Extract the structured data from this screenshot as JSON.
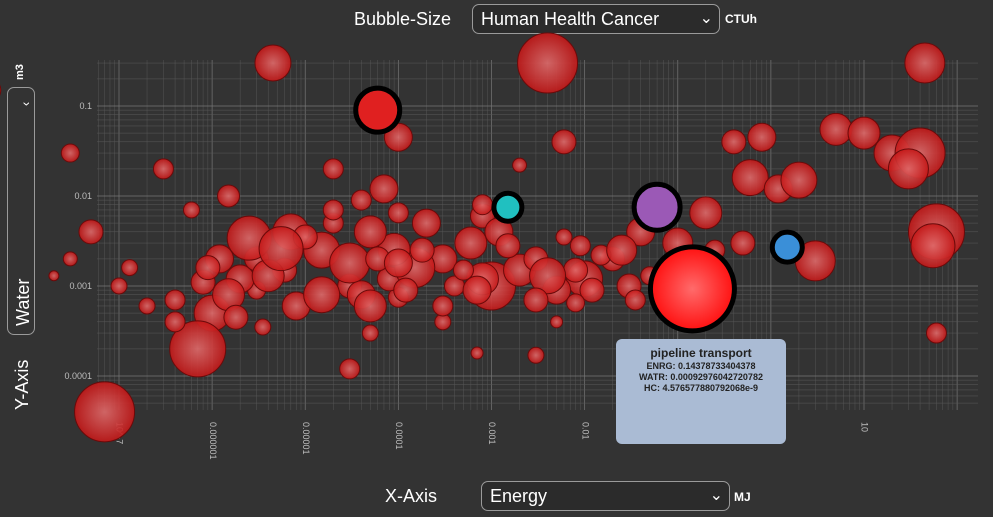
{
  "bubble_size": {
    "label": "Bubble-Size",
    "selected": "Human Health Cancer",
    "unit": "CTUh"
  },
  "x_axis": {
    "label": "X-Axis",
    "selected": "Energy",
    "unit": "MJ"
  },
  "y_axis": {
    "label": "Y-Axis",
    "selected": "Water",
    "unit": "m3"
  },
  "tooltip": {
    "title": "pipeline transport",
    "lines": [
      "ENRG: 0.14378733404378",
      "WATR: 0.000929760427207​82",
      "HC: 4.57657788079​2068e-9"
    ]
  },
  "colors": {
    "background": "#333333",
    "bubble": "#e02020",
    "highlight_cyan": "#20c0c0",
    "highlight_purple": "#9b59b6",
    "highlight_blue": "#3a8fd8",
    "tooltip": "#aabbd4"
  },
  "chart_data": {
    "type": "scatter",
    "title": "",
    "xlabel": "Energy",
    "ylabel": "Water",
    "xscale": "log",
    "yscale": "log",
    "xlim": [
      1e-08,
      100
    ],
    "ylim": [
      3e-05,
      0.4
    ],
    "x_ticks": [
      "10^-7",
      "0.000001",
      "0.00001",
      "0.0001",
      "0.001",
      "0.01",
      "0.1",
      "1",
      "10"
    ],
    "y_ticks": [
      "0.0001",
      "0.001",
      "0.01",
      "0.1"
    ],
    "highlighted": [
      {
        "x": 6e-05,
        "y": 0.09,
        "size": 22,
        "color": "#e02020"
      },
      {
        "x": 0.0015,
        "y": 0.0075,
        "size": 14,
        "color": "#20c0c0"
      },
      {
        "x": 0.06,
        "y": 0.0075,
        "size": 23,
        "color": "#9b59b6"
      },
      {
        "x": 0.14378733404378,
        "y": 0.00092976,
        "size": 42,
        "color": "#ff2020"
      },
      {
        "x": 1.5,
        "y": 0.0027,
        "size": 15,
        "color": "#3a8fd8"
      }
    ],
    "points": [
      [
        7e-08,
        4e-05,
        30
      ],
      [
        4.5e-06,
        0.3,
        18
      ],
      [
        0.004,
        0.3,
        30
      ],
      [
        4e-09,
        0.15,
        12
      ],
      [
        45,
        0.3,
        20
      ],
      [
        0.0001,
        0.045,
        14
      ],
      [
        2e-08,
        0.0013,
        5
      ],
      [
        3e-08,
        0.002,
        7
      ],
      [
        3e-06,
        0.0009,
        9
      ],
      [
        1.2e-06,
        0.002,
        14
      ],
      [
        6e-06,
        0.0015,
        12
      ],
      [
        1.5e-05,
        0.0025,
        18
      ],
      [
        3e-05,
        0.001,
        12
      ],
      [
        0.0001,
        0.00075,
        10
      ],
      [
        0.0003,
        0.002,
        14
      ],
      [
        0.001,
        0.001,
        24
      ],
      [
        0.002,
        0.0015,
        16
      ],
      [
        0.01,
        0.0012,
        18
      ],
      [
        0.02,
        0.002,
        12
      ],
      [
        0.04,
        0.004,
        14
      ],
      [
        0.1,
        0.003,
        15
      ],
      [
        0.2,
        0.0065,
        16
      ],
      [
        0.6,
        0.016,
        18
      ],
      [
        1.2,
        0.012,
        14
      ],
      [
        2,
        0.015,
        18
      ],
      [
        0.8,
        0.045,
        14
      ],
      [
        0.4,
        0.04,
        12
      ],
      [
        5,
        0.055,
        16
      ],
      [
        10,
        0.05,
        16
      ],
      [
        20,
        0.03,
        18
      ],
      [
        40,
        0.03,
        25
      ],
      [
        30,
        0.02,
        20
      ],
      [
        60,
        0.004,
        28
      ],
      [
        55,
        0.0028,
        22
      ],
      [
        3,
        0.0019,
        20
      ],
      [
        60,
        0.0003,
        10
      ],
      [
        1e-06,
        0.0005,
        18
      ],
      [
        7e-07,
        0.0002,
        28
      ],
      [
        3e-05,
        0.00012,
        10
      ],
      [
        0.0007,
        0.00018,
        6
      ],
      [
        0.003,
        0.00017,
        8
      ],
      [
        5e-08,
        0.004,
        12
      ],
      [
        1e-07,
        0.001,
        8
      ],
      [
        4e-07,
        0.0007,
        10
      ],
      [
        2e-07,
        0.0006,
        8
      ],
      [
        8e-07,
        0.0011,
        12
      ],
      [
        2e-06,
        0.0012,
        14
      ],
      [
        3e-06,
        0.002,
        12
      ],
      [
        4e-06,
        0.0013,
        16
      ],
      [
        7e-06,
        0.004,
        18
      ],
      [
        1e-05,
        0.0035,
        12
      ],
      [
        2e-05,
        0.005,
        10
      ],
      [
        4e-05,
        0.0008,
        14
      ],
      [
        5e-05,
        0.0006,
        16
      ],
      [
        8e-05,
        0.0012,
        12
      ],
      [
        0.0002,
        0.005,
        14
      ],
      [
        0.0004,
        0.001,
        10
      ],
      [
        0.0006,
        0.003,
        16
      ],
      [
        0.0008,
        0.006,
        12
      ],
      [
        0.0012,
        0.004,
        14
      ],
      [
        0.003,
        0.002,
        12
      ],
      [
        0.005,
        0.0009,
        14
      ],
      [
        0.008,
        0.0015,
        12
      ],
      [
        0.015,
        0.0022,
        10
      ],
      [
        0.03,
        0.001,
        12
      ],
      [
        3e-08,
        0.03,
        9
      ],
      [
        3e-07,
        0.02,
        10
      ],
      [
        2e-05,
        0.02,
        10
      ],
      [
        7e-05,
        0.012,
        14
      ],
      [
        4e-05,
        0.009,
        10
      ],
      [
        0.0008,
        0.008,
        10
      ],
      [
        0.002,
        0.022,
        7
      ],
      [
        0.006,
        0.04,
        12
      ],
      [
        6e-07,
        0.007,
        8
      ],
      [
        1.5e-06,
        0.01,
        11
      ],
      [
        5e-05,
        0.0003,
        8
      ],
      [
        0.0003,
        0.0004,
        8
      ],
      [
        0.005,
        0.0004,
        6
      ],
      [
        0.0008,
        0.0012,
        16
      ],
      [
        0.00015,
        0.0016,
        20
      ],
      [
        9e-05,
        0.00255,
        16
      ],
      [
        2.5e-06,
        0.0034,
        22
      ],
      [
        5.5e-06,
        0.0026,
        22
      ],
      [
        0.00018,
        0.0025,
        12
      ],
      [
        0.0015,
        0.0028,
        12
      ],
      [
        0.004,
        0.0013,
        18
      ],
      [
        0.003,
        0.0007,
        12
      ],
      [
        0.0001,
        0.0065,
        10
      ],
      [
        2e-05,
        0.007,
        10
      ],
      [
        5e-05,
        0.004,
        16
      ],
      [
        8e-06,
        0.0006,
        14
      ],
      [
        1.5e-05,
        0.0008,
        18
      ],
      [
        3e-05,
        0.0018,
        20
      ],
      [
        6e-05,
        0.002,
        12
      ],
      [
        1.5e-06,
        0.0008,
        16
      ],
      [
        4e-07,
        0.0004,
        10
      ],
      [
        1.8e-06,
        0.00045,
        12
      ],
      [
        1.3e-07,
        0.0016,
        8
      ],
      [
        9e-07,
        0.0016,
        12
      ],
      [
        0.0005,
        0.0015,
        10
      ],
      [
        0.0007,
        0.0009,
        14
      ],
      [
        0.0001,
        0.0018,
        14
      ],
      [
        0.00012,
        0.0009,
        12
      ],
      [
        3.5e-06,
        0.00035,
        8
      ],
      [
        0.0003,
        0.0006,
        10
      ],
      [
        0.025,
        0.0025,
        15
      ],
      [
        0.035,
        0.0007,
        10
      ],
      [
        0.05,
        0.0013,
        9
      ],
      [
        0.012,
        0.0009,
        12
      ],
      [
        0.008,
        0.00065,
        9
      ],
      [
        0.006,
        0.0035,
        8
      ],
      [
        0.009,
        0.0028,
        10
      ],
      [
        0.5,
        0.003,
        12
      ],
      [
        0.25,
        0.0025,
        10
      ]
    ]
  }
}
